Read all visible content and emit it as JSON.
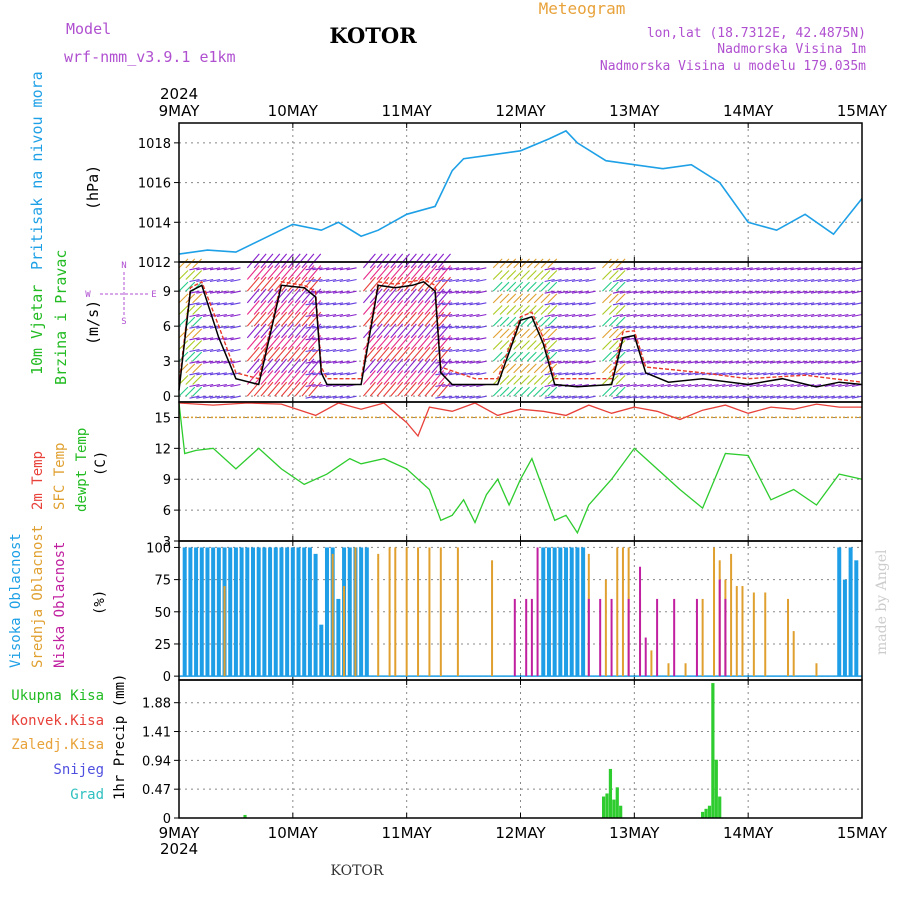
{
  "header": {
    "model_label": "Model",
    "model_name": "wrf-nmm_v3.9.1  e1km",
    "station": "KOTOR",
    "product": "Meteogram",
    "lonlat": "lon,lat (18.7312E, 42.4875N)",
    "elevation": "Nadmorska Visina 1m",
    "model_elevation": "Nadmorska Visina u modelu 179.035m",
    "watermark": "made by Angel",
    "footer_station": "KOTOR"
  },
  "time_axis": {
    "year": "2024",
    "labels": [
      "9MAY",
      "10MAY",
      "11MAY",
      "12MAY",
      "13MAY",
      "14MAY",
      "15MAY"
    ]
  },
  "colors": {
    "pressure": "#1ea0e6",
    "wind_speed": "#000000",
    "gust": "#e83a2a",
    "temp2m": "#e8413a",
    "sfc_temp": "#d9a030",
    "dewpoint": "#2ecc2e",
    "high_cloud": "#1e9ee6",
    "mid_cloud": "#e0a030",
    "low_cloud": "#c020a0",
    "precip": "#2ecc2e",
    "label_green": "#22bb22",
    "label_purple": "#b050d0",
    "label_orange": "#e8a23a"
  },
  "chart_data": [
    {
      "type": "line",
      "panel": "pressure",
      "title": "",
      "ylabel_lines": [
        "Pritisak na nivou mora",
        "(hPa)"
      ],
      "ylim": [
        1012,
        1019
      ],
      "yticks": [
        "1012",
        "1014",
        "1016",
        "1018"
      ],
      "xlim_days": [
        0,
        6
      ],
      "series": [
        {
          "name": "Pritisak na nivou mora",
          "x": [
            0,
            0.25,
            0.5,
            0.75,
            1.0,
            1.25,
            1.4,
            1.6,
            1.75,
            2.0,
            2.25,
            2.4,
            2.5,
            2.75,
            3.0,
            3.25,
            3.4,
            3.5,
            3.75,
            4.0,
            4.25,
            4.5,
            4.75,
            5.0,
            5.25,
            5.5,
            5.75,
            6.0
          ],
          "y": [
            1012.4,
            1012.6,
            1012.5,
            1013.2,
            1013.9,
            1013.6,
            1014.0,
            1013.3,
            1013.6,
            1014.4,
            1014.8,
            1016.6,
            1017.2,
            1017.4,
            1017.6,
            1018.2,
            1018.6,
            1018.0,
            1017.1,
            1016.9,
            1016.7,
            1016.9,
            1016.0,
            1014.0,
            1013.6,
            1014.4,
            1013.4,
            1015.2
          ]
        }
      ]
    },
    {
      "type": "line",
      "panel": "wind",
      "ylabel_lines": [
        "10m Vjetar",
        "Brzina i Pravac",
        "(m/s)"
      ],
      "ylim": [
        -0.5,
        11.5
      ],
      "yticks": [
        "0",
        "3",
        "6",
        "9"
      ],
      "compass": [
        "N",
        "W",
        "E",
        "S"
      ],
      "series": [
        {
          "name": "Brzina",
          "x": [
            0,
            0.1,
            0.2,
            0.35,
            0.5,
            0.7,
            0.9,
            1.1,
            1.2,
            1.25,
            1.3,
            1.4,
            1.6,
            1.75,
            1.9,
            2.05,
            2.15,
            2.25,
            2.3,
            2.4,
            2.6,
            2.8,
            3.0,
            3.1,
            3.2,
            3.3,
            3.5,
            3.8,
            3.9,
            4.0,
            4.1,
            4.3,
            4.6,
            5.0,
            5.3,
            5.6,
            5.8,
            6.0
          ],
          "y": [
            0.5,
            9.0,
            9.5,
            5.0,
            1.5,
            1.0,
            9.5,
            9.3,
            8.5,
            2.0,
            1.0,
            1.0,
            1.0,
            9.5,
            9.3,
            9.5,
            9.8,
            9.0,
            2.0,
            1.0,
            1.0,
            1.0,
            6.5,
            6.8,
            4.5,
            1.0,
            0.8,
            1.0,
            5.0,
            5.2,
            2.0,
            1.2,
            1.5,
            1.0,
            1.5,
            0.8,
            1.2,
            1.0
          ]
        },
        {
          "name": "Udari",
          "x": [
            0,
            0.1,
            0.2,
            0.35,
            0.5,
            0.7,
            0.9,
            1.1,
            1.2,
            1.25,
            1.3,
            1.6,
            1.75,
            1.9,
            2.15,
            2.25,
            2.3,
            2.6,
            2.8,
            3.0,
            3.1,
            3.2,
            3.3,
            3.8,
            3.9,
            4.0,
            4.1,
            4.6,
            5.0,
            5.5,
            6.0
          ],
          "y": [
            1.0,
            9.3,
            9.8,
            6.0,
            2.0,
            1.5,
            9.8,
            9.5,
            9.0,
            2.5,
            1.5,
            1.5,
            9.8,
            9.6,
            10.0,
            9.5,
            2.5,
            1.5,
            1.5,
            6.8,
            7.2,
            5.0,
            1.5,
            1.5,
            5.5,
            5.6,
            2.5,
            2.0,
            1.5,
            1.8,
            1.2
          ]
        }
      ]
    },
    {
      "type": "line",
      "panel": "temperature",
      "ylabel_lines": [
        "2m Temp",
        "SFC Temp",
        "dewpt Temp",
        "(C)"
      ],
      "ylim": [
        3,
        16.5
      ],
      "yticks": [
        "3",
        "6",
        "9",
        "12",
        "15"
      ],
      "series": [
        {
          "name": "2m Temp",
          "x": [
            0,
            0.3,
            0.6,
            0.9,
            1.2,
            1.4,
            1.6,
            1.8,
            2.0,
            2.1,
            2.2,
            2.4,
            2.6,
            2.8,
            3.0,
            3.2,
            3.4,
            3.6,
            3.8,
            4.0,
            4.2,
            4.4,
            4.6,
            4.8,
            5.0,
            5.2,
            5.4,
            5.6,
            5.8,
            6.0
          ],
          "y": [
            16.8,
            16.2,
            16.5,
            16.3,
            15.2,
            16.4,
            15.8,
            16.5,
            14.5,
            13.2,
            16.0,
            15.6,
            16.4,
            15.2,
            15.8,
            15.6,
            15.2,
            16.2,
            15.4,
            16.0,
            15.6,
            14.8,
            15.7,
            16.2,
            15.4,
            16.0,
            15.8,
            16.3,
            16.0,
            16.0
          ]
        },
        {
          "name": "SFC Temp",
          "x": [
            0,
            6
          ],
          "y": [
            15.0,
            15.0
          ]
        },
        {
          "name": "dewpt Temp",
          "x": [
            0,
            0.05,
            0.15,
            0.3,
            0.5,
            0.7,
            0.9,
            1.1,
            1.3,
            1.5,
            1.6,
            1.8,
            2.0,
            2.2,
            2.3,
            2.4,
            2.5,
            2.6,
            2.7,
            2.8,
            2.9,
            3.0,
            3.1,
            3.2,
            3.3,
            3.4,
            3.5,
            3.6,
            3.8,
            4.0,
            4.2,
            4.4,
            4.6,
            4.8,
            5.0,
            5.2,
            5.4,
            5.6,
            5.8,
            6.0
          ],
          "y": [
            16.5,
            11.5,
            11.8,
            12.0,
            10.0,
            12.0,
            10.0,
            8.5,
            9.5,
            11.0,
            10.5,
            11.0,
            10.0,
            8.0,
            5.0,
            5.5,
            7.0,
            4.8,
            7.5,
            9.0,
            6.5,
            9.0,
            11.0,
            8.0,
            5.0,
            5.5,
            3.8,
            6.5,
            9.0,
            12.0,
            10.0,
            8.0,
            6.2,
            11.5,
            11.3,
            7.0,
            8.0,
            6.5,
            9.5,
            9.0
          ]
        }
      ]
    },
    {
      "type": "bar",
      "panel": "cloud",
      "ylabel_lines": [
        "Visoka Oblacnost",
        "Srednja Oblacnost",
        "Niska Oblacnost",
        "(%)"
      ],
      "ylim": [
        0,
        100
      ],
      "yticks": [
        "0",
        "25",
        "50",
        "75",
        "100"
      ],
      "series": [
        {
          "name": "Visoka Oblacnost",
          "x": [
            0.05,
            0.1,
            0.15,
            0.2,
            0.25,
            0.3,
            0.35,
            0.4,
            0.45,
            0.5,
            0.55,
            0.6,
            0.65,
            0.7,
            0.75,
            0.8,
            0.85,
            0.9,
            0.95,
            1.0,
            1.05,
            1.1,
            1.15,
            1.2,
            1.25,
            1.3,
            1.35,
            1.4,
            1.45,
            1.5,
            1.55,
            1.6,
            1.65,
            3.2,
            3.25,
            3.3,
            3.35,
            3.4,
            3.45,
            3.5,
            3.55,
            5.8,
            5.85,
            5.9,
            5.95
          ],
          "y": [
            100,
            100,
            100,
            100,
            100,
            100,
            100,
            100,
            100,
            100,
            100,
            100,
            100,
            100,
            100,
            100,
            100,
            100,
            100,
            100,
            100,
            100,
            100,
            95,
            40,
            100,
            100,
            60,
            100,
            100,
            100,
            100,
            100,
            100,
            100,
            100,
            100,
            100,
            100,
            100,
            100,
            100,
            75,
            100,
            90
          ]
        },
        {
          "name": "Srednja Oblacnost",
          "x": [
            0.4,
            1.35,
            1.45,
            1.55,
            1.75,
            1.85,
            1.9,
            2.0,
            2.1,
            2.2,
            2.3,
            2.45,
            2.75,
            3.6,
            3.75,
            3.85,
            3.9,
            3.95,
            4.05,
            4.15,
            4.3,
            4.45,
            4.6,
            4.7,
            4.75,
            4.8,
            4.85,
            4.9,
            4.95,
            5.05,
            5.15,
            5.35,
            5.4,
            5.6
          ],
          "y": [
            70,
            95,
            70,
            100,
            95,
            100,
            100,
            100,
            100,
            100,
            100,
            100,
            90,
            95,
            75,
            100,
            100,
            100,
            60,
            20,
            10,
            10,
            60,
            100,
            90,
            75,
            95,
            70,
            70,
            65,
            65,
            60,
            35,
            10
          ]
        },
        {
          "name": "Niska Oblacnost",
          "x": [
            2.95,
            3.05,
            3.1,
            3.15,
            3.6,
            3.7,
            3.8,
            3.95,
            4.05,
            4.1,
            4.2,
            4.35,
            4.55,
            4.75,
            4.8
          ],
          "y": [
            60,
            60,
            60,
            100,
            60,
            60,
            60,
            60,
            85,
            30,
            60,
            60,
            60,
            75,
            60
          ]
        }
      ]
    },
    {
      "type": "bar",
      "panel": "precip",
      "ylabel_lines": [
        "1hr Precip (mm)"
      ],
      "legend": [
        "Ukupna Kisa",
        "Konvek.Kisa",
        "Zaledj.Kisa",
        "Snijeg",
        "Grad"
      ],
      "ylim": [
        0,
        2.25
      ],
      "yticks": [
        "0",
        "0.47",
        "0.94",
        "1.41",
        "1.88"
      ],
      "series": [
        {
          "name": "Ukupna Kisa",
          "x": [
            0.58,
            3.73,
            3.76,
            3.79,
            3.82,
            3.85,
            3.88,
            4.6,
            4.63,
            4.66,
            4.69,
            4.72,
            4.75
          ],
          "y": [
            0.05,
            0.35,
            0.4,
            0.8,
            0.3,
            0.5,
            0.2,
            0.1,
            0.15,
            0.2,
            2.2,
            0.95,
            0.35
          ]
        }
      ]
    }
  ]
}
